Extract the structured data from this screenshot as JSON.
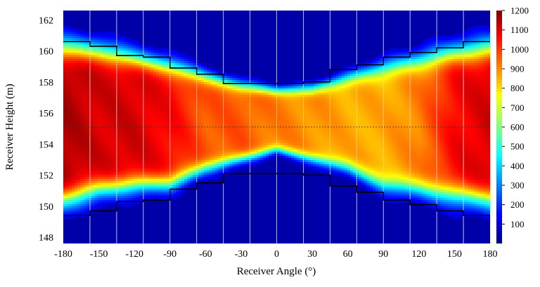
{
  "chart_data": {
    "type": "heatmap",
    "xlabel": "Receiver Angle (°)",
    "ylabel": "Receiver Height (m)",
    "xlim": [
      -180,
      180
    ],
    "ylim": [
      147.6,
      162.6
    ],
    "x_ticks": [
      -180,
      -150,
      -120,
      -90,
      -60,
      -30,
      0,
      30,
      60,
      90,
      120,
      150,
      180
    ],
    "y_ticks": [
      148,
      150,
      152,
      154,
      156,
      158,
      160,
      162
    ],
    "colorbar": {
      "min": 0,
      "max": 1200,
      "ticks": [
        100,
        200,
        300,
        400,
        500,
        600,
        700,
        800,
        900,
        1000,
        1100,
        1200
      ],
      "colormap": "jet"
    },
    "reference_height": 155.1,
    "step_boundaries": [
      -180,
      -157.5,
      -135,
      -112.5,
      -90,
      -67.5,
      -45,
      -22.5,
      0,
      22.5,
      45,
      67.5,
      90,
      112.5,
      135,
      157.5,
      180
    ],
    "upper_boundary": [
      160.6,
      160.3,
      159.7,
      159.6,
      158.9,
      158.5,
      157.9,
      157.9,
      157.9,
      158.0,
      158.8,
      159.1,
      159.6,
      159.9,
      160.2,
      160.6
    ],
    "lower_boundary": [
      149.4,
      149.7,
      150.3,
      150.4,
      151.1,
      151.5,
      152.1,
      152.1,
      152.1,
      152.0,
      151.3,
      150.9,
      150.4,
      150.1,
      149.7,
      149.4
    ],
    "intensity_samples": {
      "angles": [
        -180,
        -150,
        -120,
        -90,
        -60,
        -30,
        0,
        30,
        60,
        90,
        120,
        150,
        180
      ],
      "peak_value": [
        1150,
        1100,
        1100,
        1050,
        950,
        950,
        900,
        880,
        850,
        850,
        900,
        1050,
        1100
      ],
      "band_top": [
        160.3,
        160.1,
        159.6,
        159.1,
        158.4,
        157.8,
        157.5,
        157.6,
        158.3,
        159.0,
        159.5,
        160.0,
        160.3
      ],
      "band_bottom": [
        150.3,
        151.0,
        151.3,
        151.4,
        152.4,
        153.0,
        153.6,
        153.0,
        152.4,
        151.3,
        151.0,
        150.6,
        150.3
      ]
    }
  }
}
